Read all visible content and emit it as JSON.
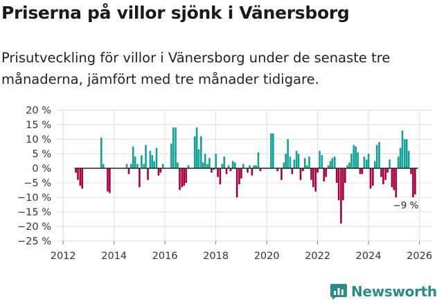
{
  "title": "Priserna på villor sjönk i Vänersborg",
  "subtitle": "Prisutveckling för villor i Vänersborg under de senaste tre månaderna, jämfört med tre månader tidigare.",
  "brand": {
    "name": "Newsworthy",
    "color": "#2b8c86"
  },
  "colors": {
    "positive": "#12a197",
    "negative": "#a3003f",
    "grid": "#dddddd",
    "zero_line": "#222222"
  },
  "chart_data": {
    "type": "bar",
    "title": "Priserna på villor sjönk i Vänersborg",
    "xlabel": "",
    "ylabel": "",
    "ylim": [
      -25,
      20
    ],
    "yticks": [
      20,
      15,
      10,
      5,
      0,
      -5,
      -10,
      -15,
      -20,
      -25
    ],
    "ytick_labels": [
      "20 %",
      "15 %",
      "10 %",
      "5 %",
      "0 %",
      "−5 %",
      "−10 %",
      "−15 %",
      "−20 %",
      "−25 %"
    ],
    "xlim": [
      2011.75,
      2026.5
    ],
    "xticks": [
      2012,
      2014,
      2016,
      2018,
      2020,
      2022,
      2024,
      2026
    ],
    "xtick_labels": [
      "2012",
      "2014",
      "2016",
      "2018",
      "2020",
      "2022",
      "2024",
      "2026"
    ],
    "annotation": {
      "text": "−9 %",
      "x": 2025.75,
      "y": -9
    },
    "series": [
      {
        "name": "Prisutveckling",
        "points": [
          [
            2012.5,
            -1.5
          ],
          [
            2012.58,
            -4
          ],
          [
            2012.67,
            -6
          ],
          [
            2012.75,
            -7
          ],
          [
            2013.5,
            10.5
          ],
          [
            2013.58,
            1.5
          ],
          [
            2013.75,
            -8
          ],
          [
            2013.83,
            -8.5
          ],
          [
            2014.5,
            1.5
          ],
          [
            2014.58,
            -2
          ],
          [
            2014.67,
            1.5
          ],
          [
            2014.75,
            7.5
          ],
          [
            2014.83,
            4
          ],
          [
            2014.92,
            1.5
          ],
          [
            2015.0,
            -6.5
          ],
          [
            2015.08,
            4.5
          ],
          [
            2015.17,
            1.5
          ],
          [
            2015.25,
            8
          ],
          [
            2015.33,
            -4
          ],
          [
            2015.42,
            6
          ],
          [
            2015.5,
            4.5
          ],
          [
            2015.58,
            2.5
          ],
          [
            2015.67,
            7
          ],
          [
            2015.75,
            -2.5
          ],
          [
            2015.83,
            -1.5
          ],
          [
            2015.92,
            1.5
          ],
          [
            2016.25,
            8.5
          ],
          [
            2016.33,
            14
          ],
          [
            2016.42,
            14
          ],
          [
            2016.5,
            2
          ],
          [
            2016.58,
            -7.5
          ],
          [
            2016.67,
            -6.5
          ],
          [
            2016.75,
            -6
          ],
          [
            2016.83,
            -5
          ],
          [
            2016.92,
            1
          ],
          [
            2017.17,
            11
          ],
          [
            2017.25,
            14
          ],
          [
            2017.33,
            6.5
          ],
          [
            2017.42,
            11
          ],
          [
            2017.5,
            2
          ],
          [
            2017.58,
            5
          ],
          [
            2017.67,
            1.5
          ],
          [
            2017.75,
            3.5
          ],
          [
            2017.83,
            -1.5
          ],
          [
            2017.92,
            -0.5
          ],
          [
            2018.0,
            5
          ],
          [
            2018.08,
            -3
          ],
          [
            2018.17,
            -5.5
          ],
          [
            2018.25,
            1.5
          ],
          [
            2018.33,
            4
          ],
          [
            2018.42,
            -2
          ],
          [
            2018.5,
            1
          ],
          [
            2018.58,
            -1
          ],
          [
            2018.67,
            2.5
          ],
          [
            2018.75,
            2
          ],
          [
            2018.83,
            -10
          ],
          [
            2018.92,
            -5.5
          ],
          [
            2019.0,
            -3.5
          ],
          [
            2019.08,
            1.5
          ],
          [
            2019.25,
            -1.5
          ],
          [
            2019.33,
            1
          ],
          [
            2019.42,
            -2.5
          ],
          [
            2019.5,
            1
          ],
          [
            2019.58,
            1
          ],
          [
            2019.67,
            5.5
          ],
          [
            2019.75,
            -1
          ],
          [
            2020.17,
            12
          ],
          [
            2020.25,
            12
          ],
          [
            2020.42,
            -1
          ],
          [
            2020.58,
            -4
          ],
          [
            2020.67,
            2
          ],
          [
            2020.75,
            5
          ],
          [
            2020.83,
            10
          ],
          [
            2020.92,
            4
          ],
          [
            2021.0,
            -2
          ],
          [
            2021.08,
            3
          ],
          [
            2021.17,
            6
          ],
          [
            2021.25,
            5
          ],
          [
            2021.33,
            -4
          ],
          [
            2021.42,
            -1
          ],
          [
            2021.5,
            3.5
          ],
          [
            2021.58,
            1
          ],
          [
            2021.67,
            4
          ],
          [
            2021.75,
            -4
          ],
          [
            2021.83,
            -6.5
          ],
          [
            2021.92,
            -8
          ],
          [
            2022.0,
            -1.5
          ],
          [
            2022.08,
            6
          ],
          [
            2022.17,
            4.5
          ],
          [
            2022.25,
            -4.5
          ],
          [
            2022.33,
            -3
          ],
          [
            2022.42,
            1
          ],
          [
            2022.5,
            2.5
          ],
          [
            2022.58,
            3.5
          ],
          [
            2022.67,
            4
          ],
          [
            2022.75,
            -5
          ],
          [
            2022.83,
            -11
          ],
          [
            2022.92,
            -19
          ],
          [
            2023.0,
            -11
          ],
          [
            2023.08,
            -5
          ],
          [
            2023.17,
            1
          ],
          [
            2023.25,
            2
          ],
          [
            2023.33,
            5
          ],
          [
            2023.42,
            8
          ],
          [
            2023.5,
            7.5
          ],
          [
            2023.58,
            5.5
          ],
          [
            2023.67,
            -2
          ],
          [
            2023.75,
            -2
          ],
          [
            2023.83,
            4
          ],
          [
            2023.92,
            3
          ],
          [
            2024.0,
            5
          ],
          [
            2024.08,
            -7
          ],
          [
            2024.17,
            -6
          ],
          [
            2024.25,
            2.5
          ],
          [
            2024.33,
            8
          ],
          [
            2024.42,
            9
          ],
          [
            2024.5,
            -3
          ],
          [
            2024.58,
            -5.5
          ],
          [
            2024.67,
            -4
          ],
          [
            2024.75,
            -1.5
          ],
          [
            2024.83,
            3
          ],
          [
            2024.92,
            -6.5
          ],
          [
            2025.0,
            -7.5
          ],
          [
            2025.08,
            -10
          ],
          [
            2025.17,
            4
          ],
          [
            2025.25,
            7
          ],
          [
            2025.33,
            13
          ],
          [
            2025.42,
            10
          ],
          [
            2025.5,
            10
          ],
          [
            2025.58,
            6
          ],
          [
            2025.67,
            -2
          ],
          [
            2025.75,
            -10
          ],
          [
            2025.83,
            -9
          ]
        ]
      }
    ]
  }
}
